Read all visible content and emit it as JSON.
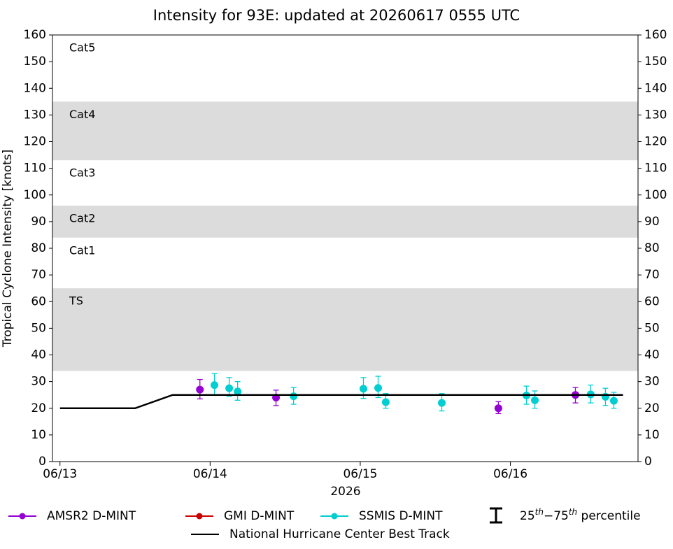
{
  "chart_data": {
    "type": "scatter",
    "title": "Intensity for 93E: updated at 20260617 0555 UTC",
    "x_label": "2026",
    "y_label": "Tropical Cyclone Intensity [knots]",
    "xlim": [
      -0.05,
      3.85
    ],
    "xticks": [
      {
        "value": 0,
        "label": "06/13"
      },
      {
        "value": 1,
        "label": "06/14"
      },
      {
        "value": 2,
        "label": "06/15"
      },
      {
        "value": 3,
        "label": "06/16"
      }
    ],
    "ylim": [
      0,
      160
    ],
    "yticks": [
      0,
      10,
      20,
      30,
      40,
      50,
      60,
      70,
      80,
      90,
      100,
      110,
      120,
      130,
      140,
      150,
      160
    ],
    "y2lim": [
      0,
      160
    ],
    "y2ticks": [
      0,
      10,
      20,
      30,
      40,
      50,
      60,
      70,
      80,
      90,
      100,
      110,
      120,
      130,
      140,
      150,
      160
    ],
    "bands": [
      {
        "label": "TS",
        "ymin": 34,
        "ymax": 65,
        "shaded": true
      },
      {
        "label": "Cat1",
        "ymin": 65,
        "ymax": 84,
        "shaded": false
      },
      {
        "label": "Cat2",
        "ymin": 84,
        "ymax": 96,
        "shaded": true
      },
      {
        "label": "Cat3",
        "ymin": 96,
        "ymax": 113,
        "shaded": false
      },
      {
        "label": "Cat4",
        "ymin": 113,
        "ymax": 135,
        "shaded": true
      },
      {
        "label": "Cat5",
        "ymin": 135,
        "ymax": 160,
        "shaded": false
      }
    ],
    "band_color": "#dcdcdc",
    "series": [
      {
        "name": "AMSR2 D-MINT",
        "color": "#9400d3",
        "x": [
          0.932,
          1.439,
          2.92,
          3.433
        ],
        "values": [
          27,
          24,
          20,
          25
        ],
        "lower": [
          23.5,
          21,
          18,
          22
        ],
        "upper": [
          30.8,
          26.8,
          22.5,
          27.8
        ]
      },
      {
        "name": "GMI D-MINT",
        "color": "#cc0000",
        "x": [],
        "values": [],
        "lower": [],
        "upper": []
      },
      {
        "name": "SSMIS D-MINT",
        "color": "#00ced1",
        "x": [
          1.029,
          1.127,
          1.183,
          1.556,
          2.021,
          2.119,
          2.17,
          2.543,
          3.107,
          3.163,
          3.535,
          3.633,
          3.689
        ],
        "values": [
          28.7,
          27.5,
          26.3,
          24.5,
          27.3,
          27.6,
          22.3,
          22,
          24.8,
          23,
          25.2,
          24.3,
          22.8
        ],
        "lower": [
          25,
          24.5,
          23,
          21.5,
          23.7,
          24,
          20,
          19,
          21.5,
          20,
          22,
          21,
          20
        ],
        "upper": [
          33,
          31.5,
          30,
          27.8,
          31.5,
          32,
          25.5,
          25.5,
          28.3,
          26.5,
          28.7,
          27.5,
          26
        ]
      },
      {
        "name": "National Hurricane Center Best Track",
        "color": "#000000",
        "kind": "line",
        "x": [
          0,
          0.5,
          0.75,
          3.75
        ],
        "values": [
          20,
          20,
          25,
          25
        ]
      }
    ],
    "percentile_legend": [
      "25",
      "th",
      "−75",
      "th",
      " percentile"
    ]
  }
}
